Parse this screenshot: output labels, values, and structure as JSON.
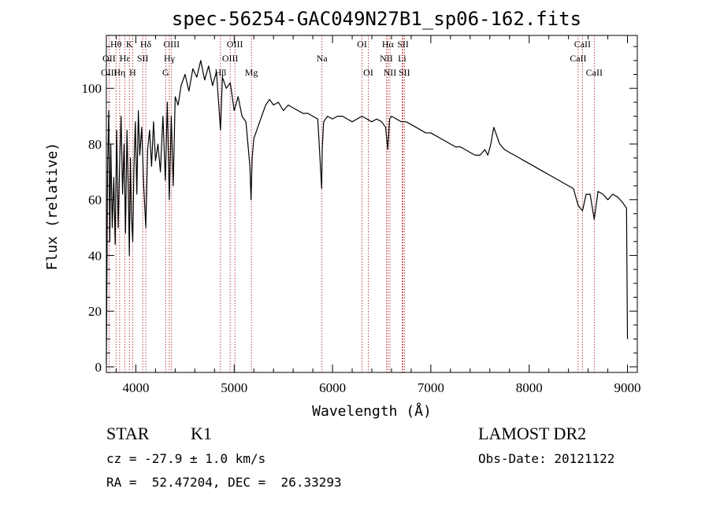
{
  "chart_data": {
    "type": "line",
    "title": "spec-56254-GAC049N27B1_sp06-162.fits",
    "xlabel": "Wavelength (Å)",
    "ylabel": "Flux (relative)",
    "xlim": [
      3700,
      9100
    ],
    "ylim": [
      -2,
      119
    ],
    "x_ticks": [
      4000,
      5000,
      6000,
      7000,
      8000,
      9000
    ],
    "y_ticks": [
      0,
      20,
      40,
      60,
      80,
      100
    ],
    "grid": false,
    "series": [
      {
        "x": [
          3700,
          3712,
          3725,
          3735,
          3745,
          3760,
          3775,
          3790,
          3805,
          3820,
          3835,
          3850,
          3865,
          3880,
          3895,
          3910,
          3925,
          3934,
          3945,
          3955,
          3968,
          3980,
          3995,
          4010,
          4025,
          4040,
          4060,
          4080,
          4101,
          4120,
          4140,
          4160,
          4180,
          4200,
          4225,
          4250,
          4275,
          4300,
          4320,
          4340,
          4360,
          4380,
          4400,
          4430,
          4460,
          4500,
          4540,
          4580,
          4620,
          4660,
          4700,
          4740,
          4780,
          4820,
          4861,
          4880,
          4920,
          4960,
          5000,
          5040,
          5080,
          5120,
          5160,
          5172,
          5183,
          5200,
          5240,
          5280,
          5320,
          5360,
          5400,
          5450,
          5500,
          5550,
          5600,
          5650,
          5700,
          5750,
          5800,
          5850,
          5890,
          5895,
          5910,
          5950,
          6000,
          6050,
          6100,
          6150,
          6200,
          6250,
          6300,
          6350,
          6400,
          6450,
          6500,
          6540,
          6563,
          6580,
          6600,
          6650,
          6700,
          6750,
          6800,
          6850,
          6900,
          6950,
          7000,
          7050,
          7100,
          7150,
          7200,
          7250,
          7300,
          7350,
          7400,
          7450,
          7500,
          7550,
          7580,
          7610,
          7640,
          7700,
          7750,
          7800,
          7850,
          7900,
          7950,
          8000,
          8050,
          8100,
          8150,
          8200,
          8250,
          8300,
          8350,
          8400,
          8450,
          8498,
          8542,
          8580,
          8620,
          8662,
          8700,
          8750,
          8800,
          8850,
          8900,
          8950,
          8990,
          9000
        ],
        "y": [
          1,
          70,
          92,
          45,
          80,
          50,
          68,
          44,
          85,
          50,
          72,
          90,
          62,
          80,
          48,
          85,
          60,
          40,
          75,
          55,
          45,
          70,
          88,
          62,
          92,
          76,
          86,
          65,
          50,
          78,
          85,
          72,
          88,
          74,
          80,
          70,
          90,
          67,
          95,
          60,
          90,
          65,
          97,
          94,
          101,
          105,
          99,
          107,
          104,
          110,
          103,
          108,
          101,
          106,
          85,
          104,
          100,
          102,
          92,
          97,
          90,
          88,
          72,
          60,
          75,
          82,
          86,
          90,
          94,
          96,
          94,
          95,
          92,
          94,
          93,
          92,
          91,
          91,
          90,
          89,
          64,
          78,
          88,
          90,
          89,
          90,
          90,
          89,
          88,
          89,
          90,
          89,
          88,
          89,
          88,
          86,
          78,
          89,
          90,
          89,
          88,
          88,
          87,
          86,
          85,
          84,
          84,
          83,
          82,
          81,
          80,
          79,
          79,
          78,
          77,
          76,
          76,
          78,
          76,
          80,
          86,
          80,
          78,
          77,
          76,
          75,
          74,
          73,
          72,
          71,
          70,
          69,
          68,
          67,
          66,
          65,
          64,
          58,
          56,
          62,
          62,
          53,
          63,
          62,
          60,
          62,
          61,
          59,
          57,
          10
        ]
      }
    ],
    "spectral_lines": [
      {
        "label": "Hθ",
        "x": 3798,
        "row": 0
      },
      {
        "label": "OII",
        "x": 3727,
        "row": 1
      },
      {
        "label": "OIII",
        "x": 3727,
        "row": 2
      },
      {
        "label": "K",
        "x": 3934,
        "row": 0
      },
      {
        "label": "H",
        "x": 3968,
        "row": 2
      },
      {
        "label": "Hε",
        "x": 3889,
        "row": 1
      },
      {
        "label": "Hη",
        "x": 3835,
        "row": 2
      },
      {
        "label": "Hδ",
        "x": 4101,
        "row": 0
      },
      {
        "label": "SII",
        "x": 4070,
        "row": 1
      },
      {
        "label": "OIII",
        "x": 4363,
        "row": 0
      },
      {
        "label": "Hγ",
        "x": 4341,
        "row": 1
      },
      {
        "label": "G",
        "x": 4304,
        "row": 2
      },
      {
        "label": "OIII",
        "x": 5007,
        "row": 0
      },
      {
        "label": "OIII",
        "x": 4959,
        "row": 1
      },
      {
        "label": "Hβ",
        "x": 4861,
        "row": 2
      },
      {
        "label": "Mg",
        "x": 5175,
        "row": 2
      },
      {
        "label": "Na",
        "x": 5893,
        "row": 1
      },
      {
        "label": "OI",
        "x": 6300,
        "row": 0
      },
      {
        "label": "OI",
        "x": 6364,
        "row": 2
      },
      {
        "label": "Hα",
        "x": 6563,
        "row": 0
      },
      {
        "label": "NII",
        "x": 6548,
        "row": 1
      },
      {
        "label": "NII",
        "x": 6584,
        "row": 2
      },
      {
        "label": "SII",
        "x": 6717,
        "row": 0
      },
      {
        "label": "Li",
        "x": 6708,
        "row": 1
      },
      {
        "label": "SII",
        "x": 6731,
        "row": 2
      },
      {
        "label": "CaII",
        "x": 8542,
        "row": 0
      },
      {
        "label": "CaII",
        "x": 8498,
        "row": 1
      },
      {
        "label": "CaII",
        "x": 8662,
        "row": 2
      }
    ],
    "marker_color": "#b01010",
    "line_color": "#000000"
  },
  "info": {
    "class_label": "STAR",
    "subclass": "K1",
    "survey": "LAMOST DR2",
    "cz": "cz = -27.9 ± 1.0 km/s",
    "obs_date": "Obs-Date: 20121122",
    "coords": "RA =  52.47204, DEC =  26.33293"
  }
}
